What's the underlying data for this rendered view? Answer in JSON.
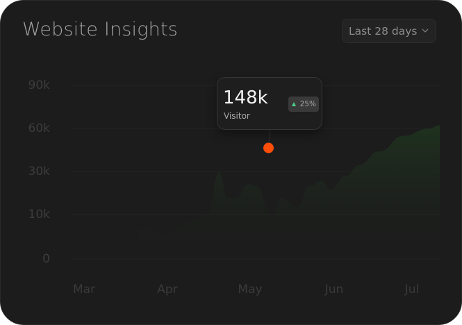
{
  "header": {
    "title": "Website Insights",
    "range_label": "Last 28 days"
  },
  "tooltip": {
    "value": "148k",
    "metric": "Visitor",
    "change": "25%",
    "change_direction": "up",
    "change_color": "#4fd08a",
    "point_color": "#ff4d0a"
  },
  "chart_data": {
    "type": "area",
    "x_ticks": [
      "Mar",
      "Apr",
      "May",
      "Jun",
      "Jul"
    ],
    "y_ticks": [
      "90k",
      "60k",
      "30k",
      "10k",
      "0"
    ],
    "series": [
      {
        "x": [
          0.0,
          0.4,
          0.6,
          0.7,
          0.8,
          1.0,
          1.05,
          1.2,
          1.3,
          1.5,
          1.65,
          1.75,
          1.85,
          2.0,
          2.1,
          2.3,
          2.4,
          2.6,
          2.75,
          2.9,
          3.0,
          3.2,
          3.35,
          3.6,
          3.9,
          4.2,
          4.5
        ],
        "y": [
          1,
          5,
          7,
          18,
          17,
          14,
          16,
          19,
          22,
          26,
          50,
          35,
          35,
          43,
          42,
          24,
          35,
          30,
          42,
          45,
          40,
          48,
          54,
          62,
          71,
          75,
          77
        ]
      }
    ],
    "highlight": {
      "x": 2.25,
      "y": 43
    },
    "fill_color": "#1f2a1f",
    "grid": true
  }
}
